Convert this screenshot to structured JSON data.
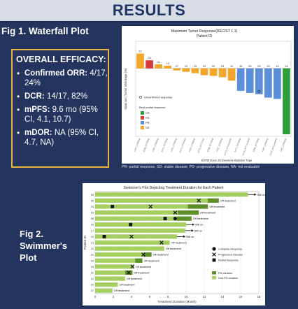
{
  "header": {
    "title": "RESULTS"
  },
  "fig1_label": "Fig 1. Waterfall Plot",
  "efficacy": {
    "heading": "OVERALL EFFICACY:",
    "items": [
      {
        "label": "Confirmed ORR:",
        "value": "4/17, 24%"
      },
      {
        "label": "DCR:",
        "value": "14/17, 82%"
      },
      {
        "label": "mPFS:",
        "value": "9.6 mo (95% CI, 4.1, 10.7)"
      },
      {
        "label": "mDOR:",
        "value": "NA (95% CI, 4.7, NA)"
      }
    ]
  },
  "waterfall_footnote": "PR- partial response, SD- stable disease, PD- progressive disease, NA- not evaluable",
  "fig2_label": [
    "Fig 2.",
    "Swimmer's",
    "Plot"
  ],
  "colors": {
    "CR": "#2e9e3a",
    "PD": "#d63a3a",
    "PR": "#5b8fd9",
    "SD": "#f2a72a",
    "NE": "#e0d9b0",
    "on_tx": "#a6cf62",
    "pd_bar": "#5f8f2a"
  },
  "chart_data": [
    {
      "type": "bar",
      "title": "Maximum Tumor Response(RECIST 1.1)",
      "legend_title": "Patient ID",
      "ylabel": "Maximum Tumor Shrinkage (%)",
      "xlabel": "EGFR Exon 20 Insertion Mutation Type",
      "ylim": [
        -100,
        40
      ],
      "patient_ids": [
        "22",
        "04",
        "01",
        "13",
        "07",
        "19",
        "15",
        "23",
        "09",
        "03",
        "10",
        "18",
        "05",
        "03",
        "15",
        "13",
        "16"
      ],
      "mutations": [
        "A767_V769dup",
        "S768_D770dup",
        "A767_V769dup",
        "N771_H773dup",
        "A767_V769dup",
        "H773_V774insH",
        "A767_V769dup",
        "D770_N771insG",
        "S768_D770dup",
        "A767_V769dup",
        "H773_V774insNPH",
        "N771_H773dup",
        "D770_N771insSVD",
        "S768_D770dup",
        "A767_V769dup",
        "D770_N771insNPG",
        "A767_V769dup"
      ],
      "values": [
        22,
        12,
        6,
        4,
        -3,
        -5,
        -7,
        -10,
        -11,
        -13,
        -18,
        -33,
        -36,
        -38,
        -43,
        -45,
        -97
      ],
      "response": [
        "SD",
        "PD",
        "SD",
        "SD",
        "SD",
        "SD",
        "SD",
        "SD",
        "SD",
        "SD",
        "SD",
        "PR",
        "PR",
        "PR",
        "PR",
        "PR",
        "CR"
      ],
      "legend_items": [
        {
          "key": "CR",
          "label": "CR"
        },
        {
          "key": "PD",
          "label": "PD"
        },
        {
          "key": "PR",
          "label": "PR"
        },
        {
          "key": "SD",
          "label": "SD"
        }
      ],
      "legend_heading": "Best partial response",
      "marker_label": "Unconfirmed response",
      "unconfirmed_index": 13,
      "legend_placement": "left"
    },
    {
      "type": "swimmer",
      "title": "Swimmer's Plot Depicting Treatment Duration for Each Patient",
      "xlabel": "Treatment Duration (Month)",
      "ylabel": "Patient ID",
      "xlim": [
        0,
        18
      ],
      "xticks": [
        0,
        2,
        4,
        6,
        8,
        10,
        12,
        14,
        16,
        18
      ],
      "patients": [
        {
          "id": "09",
          "duration": 16.8,
          "pd_start": null,
          "status": "Still on",
          "cr": null,
          "pr": null,
          "progress": null
        },
        {
          "id": "05",
          "duration": 13.6,
          "pd_start": 12.4,
          "status": "Off treatment",
          "cr": null,
          "pr": null,
          "progress": 11.4
        },
        {
          "id": "03",
          "duration": 12.4,
          "pd_start": 10.2,
          "status": "Off treatment",
          "cr": null,
          "pr": 1.9,
          "progress": 6.1
        },
        {
          "id": "15",
          "duration": 11.4,
          "pd_start": 9.1,
          "status": "Off treatment",
          "cr": null,
          "pr": null,
          "progress": 8.8
        },
        {
          "id": "08",
          "duration": 10.6,
          "pd_start": 9.0,
          "status": "Off treatment",
          "cr": 8.8,
          "pr": 7.7,
          "progress": null
        },
        {
          "id": "16",
          "duration": 10.0,
          "pd_start": null,
          "status": "Still on",
          "cr": null,
          "pr": 3.9,
          "progress": null
        },
        {
          "id": "17",
          "duration": 9.9,
          "pd_start": null,
          "status": "Still on",
          "cr": null,
          "pr": null,
          "progress": null
        },
        {
          "id": "19",
          "duration": 9.0,
          "pd_start": null,
          "status": "Still on",
          "cr": null,
          "pr": 1.0,
          "progress": 4.0
        },
        {
          "id": "13",
          "duration": 8.2,
          "pd_start": null,
          "status": "Off treatment",
          "cr": null,
          "pr": null,
          "progress": 7.3
        },
        {
          "id": "22",
          "duration": 7.6,
          "pd_start": null,
          "status": "Off treatment",
          "cr": null,
          "pr": null,
          "progress": null
        },
        {
          "id": "21",
          "duration": 6.2,
          "pd_start": 5.3,
          "status": "Off treatment",
          "cr": null,
          "pr": null,
          "progress": 5.3
        },
        {
          "id": "23",
          "duration": 5.2,
          "pd_start": 4.4,
          "status": "Off treatment",
          "cr": null,
          "pr": null,
          "progress": null
        },
        {
          "id": "18",
          "duration": 4.3,
          "pd_start": null,
          "status": "Off treatment",
          "cr": null,
          "pr": null,
          "progress": 4.1
        },
        {
          "id": "01",
          "duration": 4.1,
          "pd_start": 3.3,
          "status": "Off treatment",
          "cr": null,
          "pr": null,
          "progress": 3.7
        },
        {
          "id": "12",
          "duration": 3.3,
          "pd_start": null,
          "status": "Off treatment",
          "cr": null,
          "pr": null,
          "progress": null
        },
        {
          "id": "20",
          "duration": 2.5,
          "pd_start": null,
          "status": "Off treatment",
          "cr": null,
          "pr": null,
          "progress": null
        },
        {
          "id": "07",
          "duration": 1.9,
          "pd_start": null,
          "status": "Off treatment",
          "cr": null,
          "pr": null,
          "progress": null
        }
      ],
      "legend": {
        "complete": "Complete Response",
        "progressive": "Progressive Disease",
        "partial": "Partial Response",
        "pd_duration": "PD duration",
        "non_pd_duration": "Non-PD duration"
      },
      "legend_placement": "right"
    }
  ]
}
